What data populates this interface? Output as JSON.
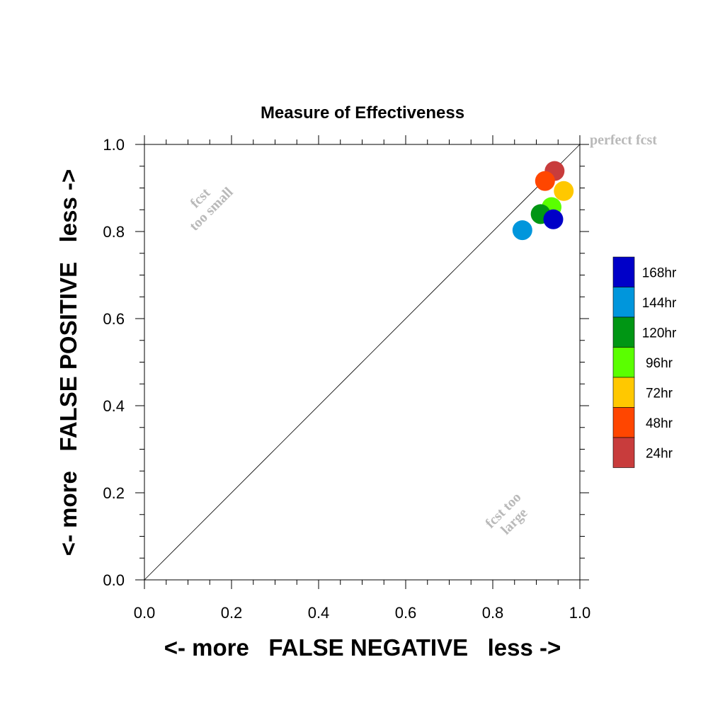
{
  "chart_data": {
    "type": "scatter",
    "title": "Measure of Effectiveness",
    "xlabel": "<- more   FALSE NEGATIVE   less ->",
    "ylabel": "<- more   FALSE POSITIVE   less ->",
    "xlim": [
      0.0,
      1.0
    ],
    "ylim": [
      0.0,
      1.0
    ],
    "x_ticks": [
      "0.0",
      "0.2",
      "0.4",
      "0.6",
      "0.8",
      "1.0"
    ],
    "y_ticks": [
      "0.0",
      "0.2",
      "0.4",
      "0.6",
      "0.8",
      "1.0"
    ],
    "diagonal_line": true,
    "grid": false,
    "annotations": {
      "perfect": "perfect fcst",
      "too_small_line1": "fcst",
      "too_small_line2": "too small",
      "too_large_line1": "fcst too",
      "too_large_line2": "large"
    },
    "legend_position": "right",
    "series": [
      {
        "name": "168hr",
        "color": "#0000c8",
        "x": 0.939,
        "y": 0.828
      },
      {
        "name": "144hr",
        "color": "#0096dc",
        "x": 0.868,
        "y": 0.803
      },
      {
        "name": "120hr",
        "color": "#009614",
        "x": 0.91,
        "y": 0.84
      },
      {
        "name": "96hr",
        "color": "#5aff00",
        "x": 0.935,
        "y": 0.856
      },
      {
        "name": "72hr",
        "color": "#ffc800",
        "x": 0.963,
        "y": 0.893
      },
      {
        "name": "48hr",
        "color": "#ff4600",
        "x": 0.92,
        "y": 0.916
      },
      {
        "name": "24hr",
        "color": "#c83c3c",
        "x": 0.942,
        "y": 0.939
      }
    ]
  }
}
